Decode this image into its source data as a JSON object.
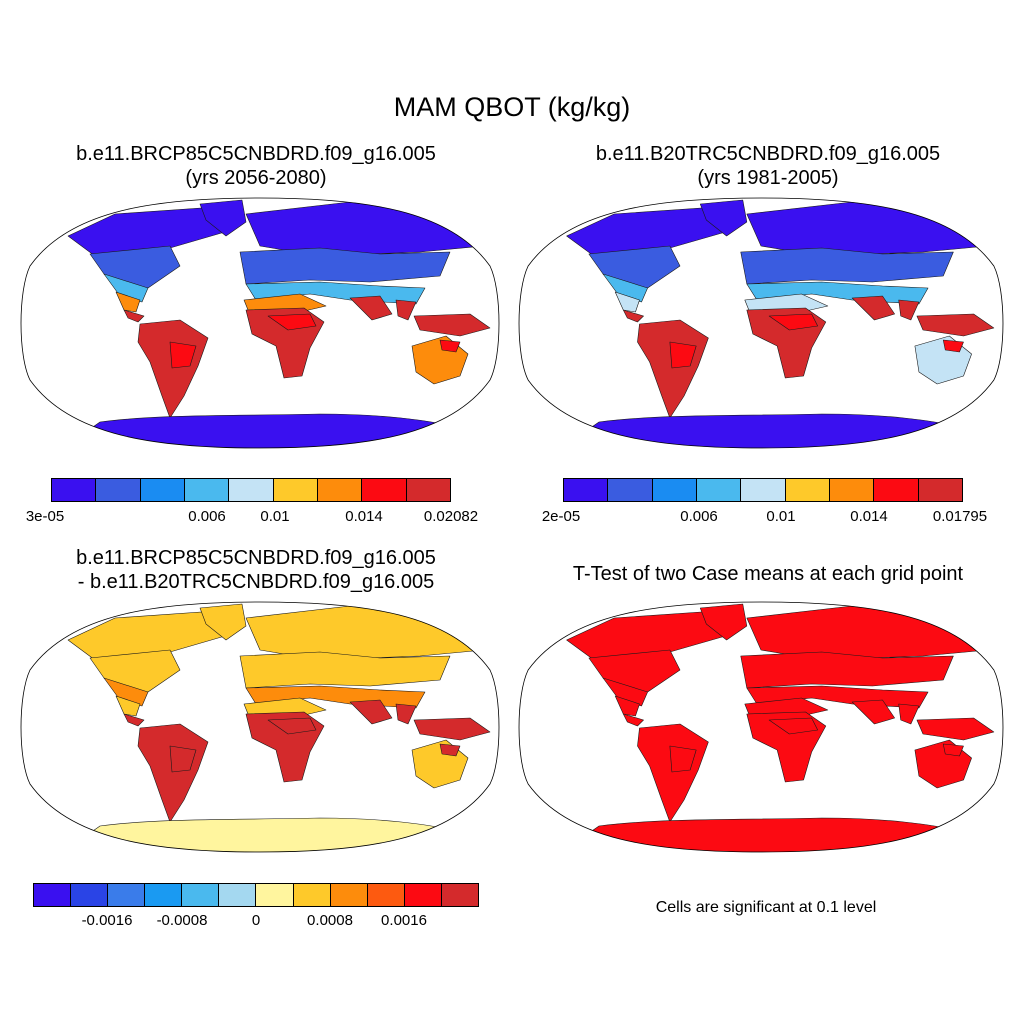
{
  "main_title": "MAM QBOT (kg/kg)",
  "panels": {
    "future": {
      "title_line1": "b.e11.BRCP85C5CNBDRD.f09_g16.005",
      "title_line2": "(yrs 2056-2080)",
      "colors": [
        "#3a10f0",
        "#3a5ce0",
        "#1a8cf2",
        "#4ab9ee",
        "#c4e3f5",
        "#fec92a",
        "#fd8c0c",
        "#fc0a12",
        "#d42a2c"
      ],
      "ticks": [
        "3e-05",
        "0.006",
        "0.01",
        "0.014",
        "0.02082"
      ],
      "regions": {
        "ocean": "#ffffff",
        "high_lat": "#3a10f0",
        "mid_lat": "#3a5ce0",
        "sub": "#4ab9ee",
        "dry": "#fd8c0c",
        "tropics": "#d42a2c",
        "hot": "#fc0a12",
        "antarctica": "#3a10f0"
      }
    },
    "past": {
      "title_line1": "b.e11.B20TRC5CNBDRD.f09_g16.005",
      "title_line2": "(yrs 1981-2005)",
      "colors": [
        "#3a10f0",
        "#3a5ce0",
        "#1a8cf2",
        "#4ab9ee",
        "#c4e3f5",
        "#fec92a",
        "#fd8c0c",
        "#fc0a12",
        "#d42a2c"
      ],
      "ticks": [
        "2e-05",
        "0.006",
        "0.01",
        "0.014",
        "0.01795"
      ],
      "regions": {
        "ocean": "#ffffff",
        "high_lat": "#3a10f0",
        "mid_lat": "#3a5ce0",
        "sub": "#4ab9ee",
        "dry": "#c4e3f5",
        "tropics": "#d42a2c",
        "hot": "#fc0a12",
        "antarctica": "#3a10f0"
      }
    },
    "difference": {
      "title_line1": "b.e11.BRCP85C5CNBDRD.f09_g16.005",
      "title_line2": "- b.e11.B20TRC5CNBDRD.f09_g16.005",
      "colors": [
        "#3a10f0",
        "#2a44e6",
        "#3a7cea",
        "#1a9af2",
        "#4ab9ee",
        "#a4d8f0",
        "#fff59e",
        "#fec92a",
        "#fd8c0c",
        "#fd5a10",
        "#fc0a12",
        "#d42a2c"
      ],
      "ticks": [
        "-0.0016",
        "-0.0008",
        "0",
        "0.0008",
        "0.0016"
      ],
      "regions": {
        "ocean": "#ffffff",
        "high_lat": "#fec92a",
        "mid_lat": "#fec92a",
        "sub": "#fd8c0c",
        "dry": "#fec92a",
        "tropics": "#d42a2c",
        "hot": "#d42a2c",
        "antarctica": "#fff59e"
      }
    },
    "ttest": {
      "title": "T-Test of two Case means at each grid point",
      "note": "Cells are significant at 0.1 level",
      "regions": {
        "ocean": "#ffffff",
        "high_lat": "#fc0a12",
        "mid_lat": "#fc0a12",
        "sub": "#fc0a12",
        "dry": "#fc0a12",
        "tropics": "#fc0a12",
        "hot": "#fc0a12",
        "antarctica": "#fc0a12"
      }
    }
  }
}
